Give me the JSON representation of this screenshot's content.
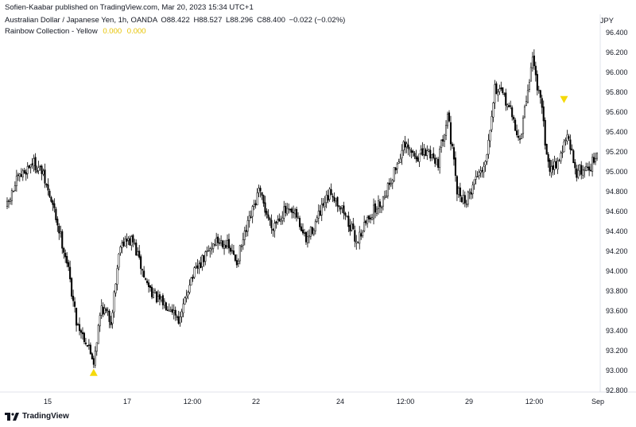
{
  "header": {
    "publisher_line": "Sofien-Kaabar published on TradingView.com, Mar 20, 2023 15:34 UTC+1",
    "symbol": "Australian Dollar / Japanese Yen, 1h, OANDA",
    "ohlc": {
      "o": "O88.422",
      "h": "H88.527",
      "l": "L88.296",
      "c": "C88.400",
      "chg": "−0.022 (−0.02%)"
    },
    "indicator": {
      "name": "Rainbow Collection - Yellow",
      "v1": "0.000",
      "v2": "0.000"
    }
  },
  "currency": "JPY",
  "footer": {
    "brand": "TradingView"
  },
  "colors": {
    "candle_up": "#ffffff",
    "candle_body_border": "#000000",
    "signal": "#f5d90a",
    "axis_text": "#131722",
    "grid_border": "#e0e3eb"
  },
  "chart_data": {
    "type": "candlestick",
    "symbol": "AUDJPY",
    "timeframe": "1h",
    "ylim": [
      92.8,
      96.4
    ],
    "y_ticks": [
      "96.400",
      "96.200",
      "96.000",
      "95.800",
      "95.600",
      "95.400",
      "95.200",
      "95.000",
      "94.800",
      "94.600",
      "94.400",
      "94.200",
      "94.000",
      "93.800",
      "93.600",
      "93.400",
      "93.200",
      "93.000",
      "92.800"
    ],
    "x_ticks": [
      "15",
      "17",
      "12:00",
      "22",
      "24",
      "12:00",
      "29",
      "12:00",
      "Sep"
    ],
    "close_path": [
      {
        "i": 0,
        "v": 94.65
      },
      {
        "i": 6,
        "v": 94.9
      },
      {
        "i": 16,
        "v": 95.1
      },
      {
        "i": 22,
        "v": 95.0
      },
      {
        "i": 30,
        "v": 94.6
      },
      {
        "i": 38,
        "v": 94.1
      },
      {
        "i": 44,
        "v": 93.5
      },
      {
        "i": 50,
        "v": 93.3
      },
      {
        "i": 55,
        "v": 93.1
      },
      {
        "i": 60,
        "v": 93.65
      },
      {
        "i": 66,
        "v": 93.5
      },
      {
        "i": 72,
        "v": 94.3
      },
      {
        "i": 80,
        "v": 94.3
      },
      {
        "i": 88,
        "v": 93.9
      },
      {
        "i": 96,
        "v": 93.7
      },
      {
        "i": 104,
        "v": 93.65
      },
      {
        "i": 110,
        "v": 93.5
      },
      {
        "i": 116,
        "v": 93.9
      },
      {
        "i": 124,
        "v": 94.1
      },
      {
        "i": 132,
        "v": 94.3
      },
      {
        "i": 138,
        "v": 94.3
      },
      {
        "i": 146,
        "v": 94.1
      },
      {
        "i": 152,
        "v": 94.4
      },
      {
        "i": 160,
        "v": 94.8
      },
      {
        "i": 168,
        "v": 94.45
      },
      {
        "i": 176,
        "v": 94.6
      },
      {
        "i": 184,
        "v": 94.55
      },
      {
        "i": 190,
        "v": 94.3
      },
      {
        "i": 198,
        "v": 94.55
      },
      {
        "i": 206,
        "v": 94.8
      },
      {
        "i": 214,
        "v": 94.6
      },
      {
        "i": 222,
        "v": 94.3
      },
      {
        "i": 230,
        "v": 94.55
      },
      {
        "i": 238,
        "v": 94.7
      },
      {
        "i": 246,
        "v": 95.0
      },
      {
        "i": 252,
        "v": 95.25
      },
      {
        "i": 260,
        "v": 95.15
      },
      {
        "i": 268,
        "v": 95.2
      },
      {
        "i": 274,
        "v": 95.1
      },
      {
        "i": 280,
        "v": 95.6
      },
      {
        "i": 286,
        "v": 94.8
      },
      {
        "i": 292,
        "v": 94.7
      },
      {
        "i": 298,
        "v": 94.95
      },
      {
        "i": 304,
        "v": 95.1
      },
      {
        "i": 310,
        "v": 95.85
      },
      {
        "i": 318,
        "v": 95.7
      },
      {
        "i": 326,
        "v": 95.3
      },
      {
        "i": 334,
        "v": 96.15
      },
      {
        "i": 340,
        "v": 95.6
      },
      {
        "i": 344,
        "v": 95.05
      },
      {
        "i": 350,
        "v": 95.1
      },
      {
        "i": 356,
        "v": 95.35
      },
      {
        "i": 362,
        "v": 95.0
      },
      {
        "i": 370,
        "v": 95.05
      },
      {
        "i": 375,
        "v": 95.15
      }
    ],
    "signals": [
      {
        "type": "bullish",
        "marker": "triangle-up",
        "i": 55,
        "price": 93.05
      },
      {
        "type": "bearish",
        "marker": "triangle-down",
        "i": 354,
        "price": 95.65
      }
    ]
  }
}
